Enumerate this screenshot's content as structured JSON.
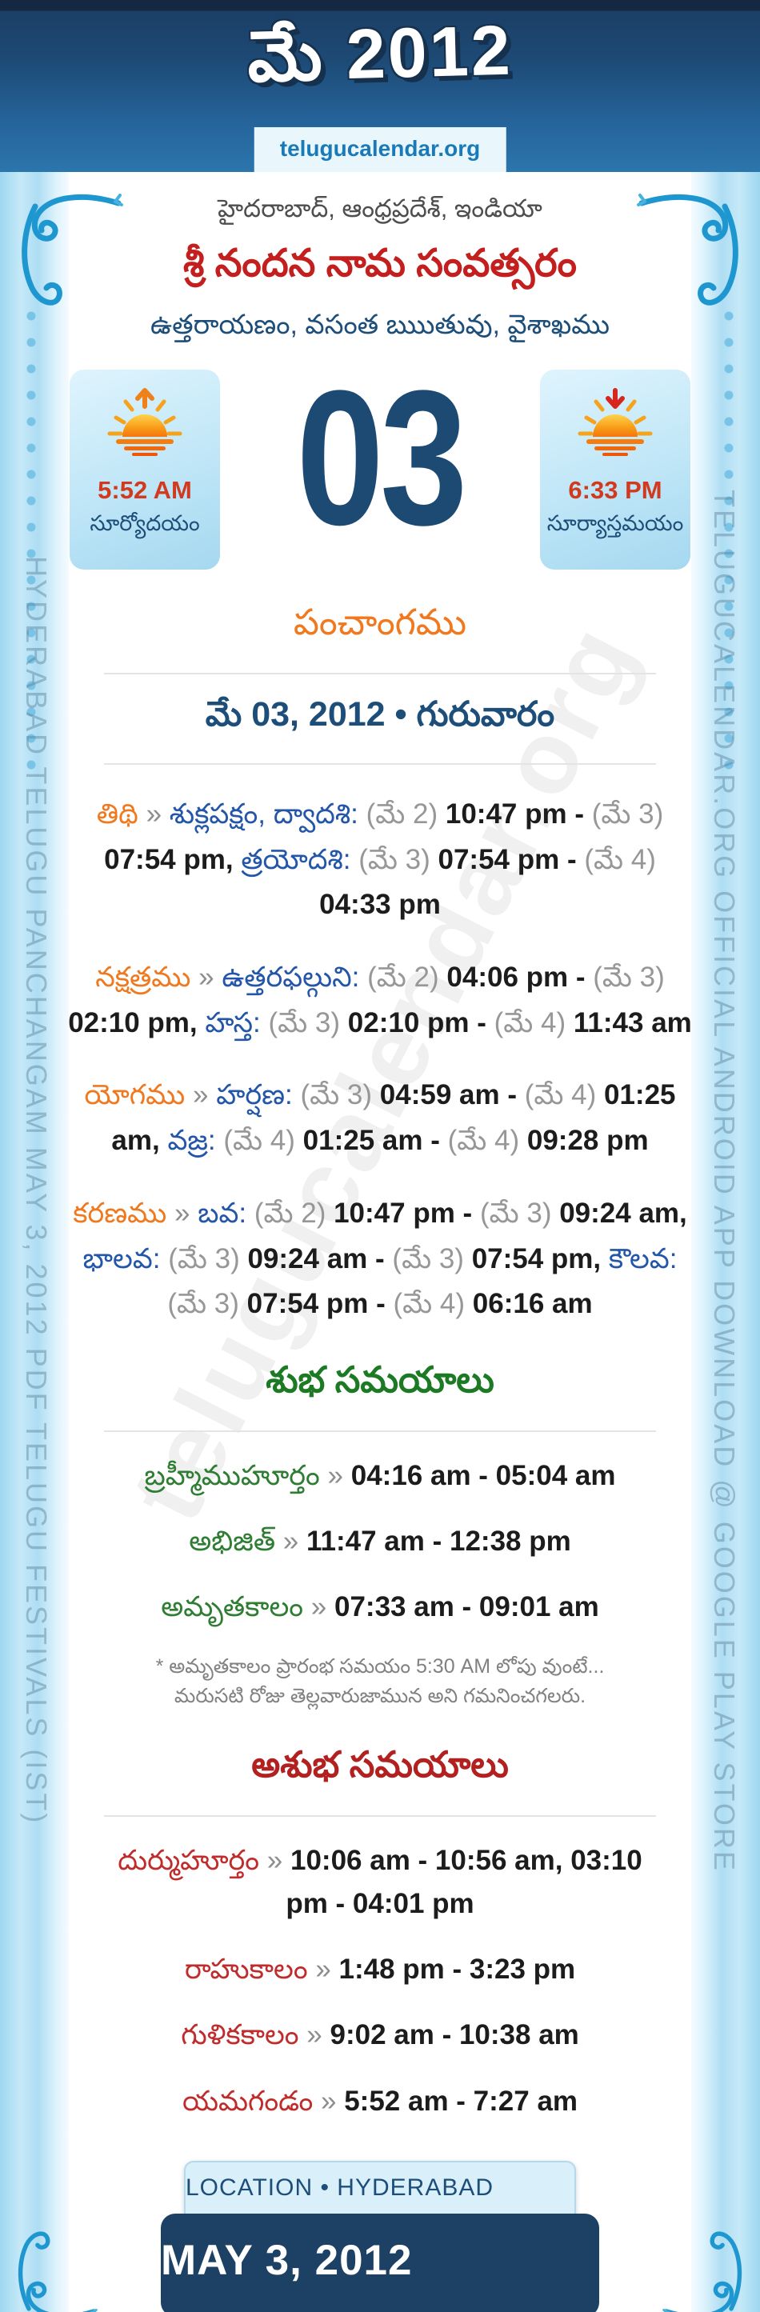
{
  "sep": "»",
  "header": {
    "title": "మే 2012",
    "site": "telugucalendar.org"
  },
  "intro": {
    "location": "హైదరాబాద్, ఆంధ్రప్రదేశ్, ఇండియా",
    "year": "శ్రీ నందన నామ సంవత్సరం",
    "season": "ఉత్తరాయణం, వసంత ఋుతువు, వైశాఖము"
  },
  "sun": {
    "sunrise_time": "5:52 AM",
    "sunrise_label": "సూర్యోదయం",
    "sunset_time": "6:33 PM",
    "sunset_label": "సూర్యాస్తమయం"
  },
  "day_number": "03",
  "panchangam": {
    "title": "పంచాంగము",
    "date_line": "మే 03, 2012 • గురువారం",
    "rows": [
      {
        "key": "thithi",
        "label": "తిథి",
        "segments": [
          [
            "b",
            "శుక్లపక్షం, ద్వాదశి:"
          ],
          [
            "g",
            "(మే 2)"
          ],
          [
            "k",
            "10:47 pm -"
          ],
          [
            "g",
            "(మే 3)"
          ],
          [
            "k",
            "07:54 pm,"
          ],
          [
            "b",
            "త్రయోదశి:"
          ],
          [
            "g",
            "(మే 3)"
          ],
          [
            "k",
            "07:54 pm -"
          ],
          [
            "g",
            "(మే 4)"
          ],
          [
            "k",
            "04:33 pm"
          ]
        ]
      },
      {
        "key": "nakshatram",
        "label": "నక్షత్రము",
        "segments": [
          [
            "b",
            "ఉత్తరఫల్గుని:"
          ],
          [
            "g",
            "(మే 2)"
          ],
          [
            "k",
            "04:06 pm -"
          ],
          [
            "g",
            "(మే 3)"
          ],
          [
            "k",
            "02:10 pm,"
          ],
          [
            "b",
            "హస్త:"
          ],
          [
            "g",
            "(మే 3)"
          ],
          [
            "k",
            "02:10 pm -"
          ],
          [
            "g",
            "(మే 4)"
          ],
          [
            "k",
            "11:43 am"
          ]
        ]
      },
      {
        "key": "yogam",
        "label": "యోగము",
        "segments": [
          [
            "b",
            "హర్షణ:"
          ],
          [
            "g",
            "(మే 3)"
          ],
          [
            "k",
            "04:59 am -"
          ],
          [
            "g",
            "(మే 4)"
          ],
          [
            "k",
            "01:25 am,"
          ],
          [
            "b",
            "వజ్ర:"
          ],
          [
            "g",
            "(మే 4)"
          ],
          [
            "k",
            "01:25 am -"
          ],
          [
            "g",
            "(మే 4)"
          ],
          [
            "k",
            "09:28 pm"
          ]
        ]
      },
      {
        "key": "karanam",
        "label": "కరణము",
        "segments": [
          [
            "b",
            "బవ:"
          ],
          [
            "g",
            "(మే 2)"
          ],
          [
            "k",
            "10:47 pm -"
          ],
          [
            "g",
            "(మే 3)"
          ],
          [
            "k",
            "09:24 am,"
          ],
          [
            "b",
            "భాలవ:"
          ],
          [
            "g",
            "(మే 3)"
          ],
          [
            "k",
            "09:24 am -"
          ],
          [
            "g",
            "(మే 3)"
          ],
          [
            "k",
            "07:54 pm,"
          ],
          [
            "b",
            "కౌలవ:"
          ],
          [
            "g",
            "(మే 3)"
          ],
          [
            "k",
            "07:54 pm -"
          ],
          [
            "g",
            "(మే 4)"
          ],
          [
            "k",
            "06:16 am"
          ]
        ]
      }
    ]
  },
  "shubha": {
    "title": "శుభ సమయాలు",
    "rows": [
      {
        "label": "బ్రహ్మీముహూర్తం",
        "value": "04:16 am - 05:04 am"
      },
      {
        "label": "అభిజిత్",
        "value": "11:47 am - 12:38 pm"
      },
      {
        "label": "అమృతకాలం",
        "value": "07:33 am - 09:01 am"
      }
    ],
    "note": "* అమృతకాలం ప్రారంభ సమయం 5:30 AM లోపు వుంటే... మరుసటి రోజు తెల్లవారుజామున అని గమనించగలరు."
  },
  "ashubha": {
    "title": "అశుభ సమయాలు",
    "rows": [
      {
        "label": "దుర్ముహూర్తం",
        "value": "10:06 am - 10:56 am, 03:10 pm - 04:01 pm"
      },
      {
        "label": "రాహుకాలం",
        "value": "1:48 pm - 3:23 pm"
      },
      {
        "label": "గుళికకాలం",
        "value": "9:02 am - 10:38 am"
      },
      {
        "label": "యమగండం",
        "value": "5:52 am - 7:27 am"
      }
    ]
  },
  "footer": {
    "location": "LOCATION • HYDERABAD",
    "date": "MAY 3, 2012"
  },
  "side_text": {
    "left": "HYDERABAD TELUGU PANCHANGAM MAY 3, 2012 PDF TELUGU FESTIVALS (IST)",
    "right": "TELUGUCALENDAR.ORG OFFICIAL ANDROID APP DOWNLOAD @ GOOGLE PLAY STORE"
  },
  "watermark": "telugucalendar.org",
  "colors": {
    "accent_orange": "#f0791f",
    "accent_red": "#b32020",
    "accent_green": "#1d7a24",
    "navy": "#1d4e79",
    "link_blue": "#2356a8",
    "header_blue": "#2b76ad"
  }
}
